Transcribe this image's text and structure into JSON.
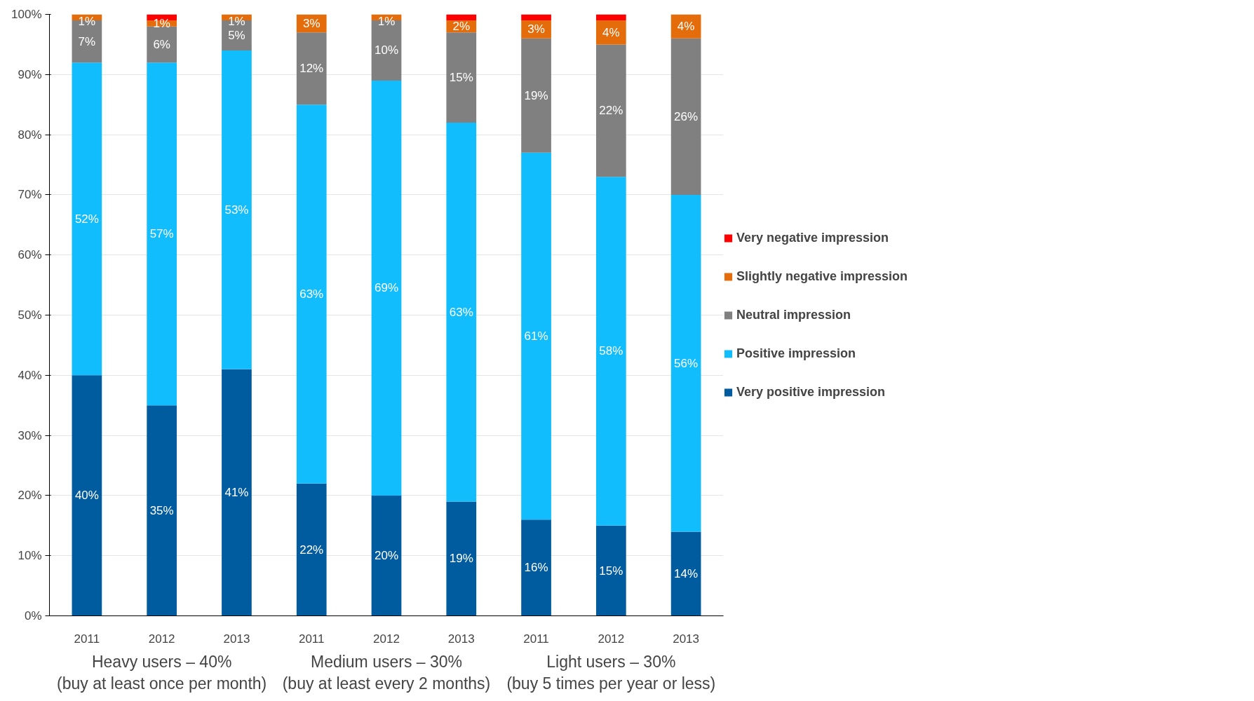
{
  "chart_data": {
    "type": "bar",
    "stacked": true,
    "categories": [
      "2011",
      "2012",
      "2013",
      "2011",
      "2012",
      "2013",
      "2011",
      "2012",
      "2013"
    ],
    "series": [
      {
        "name": "Very positive impression",
        "color": "#005b9f",
        "values": [
          40,
          35,
          41,
          22,
          20,
          19,
          16,
          15,
          14
        ],
        "value_labels": [
          "40%",
          "35%",
          "41%",
          "22%",
          "20%",
          "19%",
          "16%",
          "15%",
          "14%"
        ]
      },
      {
        "name": "Positive impression",
        "color": "#12bdfd",
        "values": [
          52,
          57,
          53,
          63,
          69,
          63,
          61,
          58,
          56
        ],
        "value_labels": [
          "52%",
          "57%",
          "53%",
          "63%",
          "69%",
          "63%",
          "61%",
          "58%",
          "56%"
        ]
      },
      {
        "name": "Neutral impression",
        "color": "#808080",
        "values": [
          7,
          6,
          5,
          12,
          10,
          15,
          19,
          22,
          26
        ],
        "value_labels": [
          "7%",
          "6%",
          "5%",
          "12%",
          "10%",
          "15%",
          "19%",
          "22%",
          "26%"
        ]
      },
      {
        "name": "Slightly negative impression",
        "color": "#e46c0a",
        "values": [
          1,
          1,
          1,
          3,
          1,
          2,
          3,
          4,
          4
        ],
        "value_labels": [
          "1%",
          "1%",
          "1%",
          "3%",
          "1%",
          "2%",
          "3%",
          "4%",
          "4%"
        ]
      },
      {
        "name": "Very negative impression",
        "color": "#ff0000",
        "values": [
          null,
          1,
          null,
          null,
          null,
          1,
          1,
          1,
          null
        ]
      }
    ],
    "ylim": [
      0,
      100
    ],
    "yticks": [
      {
        "value": 0,
        "label": "0%"
      },
      {
        "value": 10,
        "label": "10%"
      },
      {
        "value": 20,
        "label": "20%"
      },
      {
        "value": 30,
        "label": "30%"
      },
      {
        "value": 40,
        "label": "40%"
      },
      {
        "value": 50,
        "label": "50%"
      },
      {
        "value": 60,
        "label": "60%"
      },
      {
        "value": 70,
        "label": "70%"
      },
      {
        "value": 80,
        "label": "80%"
      },
      {
        "value": 90,
        "label": "90%"
      },
      {
        "value": 100,
        "label": "100%"
      }
    ],
    "annotations": [
      "Heavy users – 40%\n(buy at least once per month)",
      "Medium users – 30%\n(buy at least every 2 months)",
      "Light users – 30%\n(buy 5 times per year or less)"
    ],
    "grid": "y",
    "legend": "right"
  }
}
